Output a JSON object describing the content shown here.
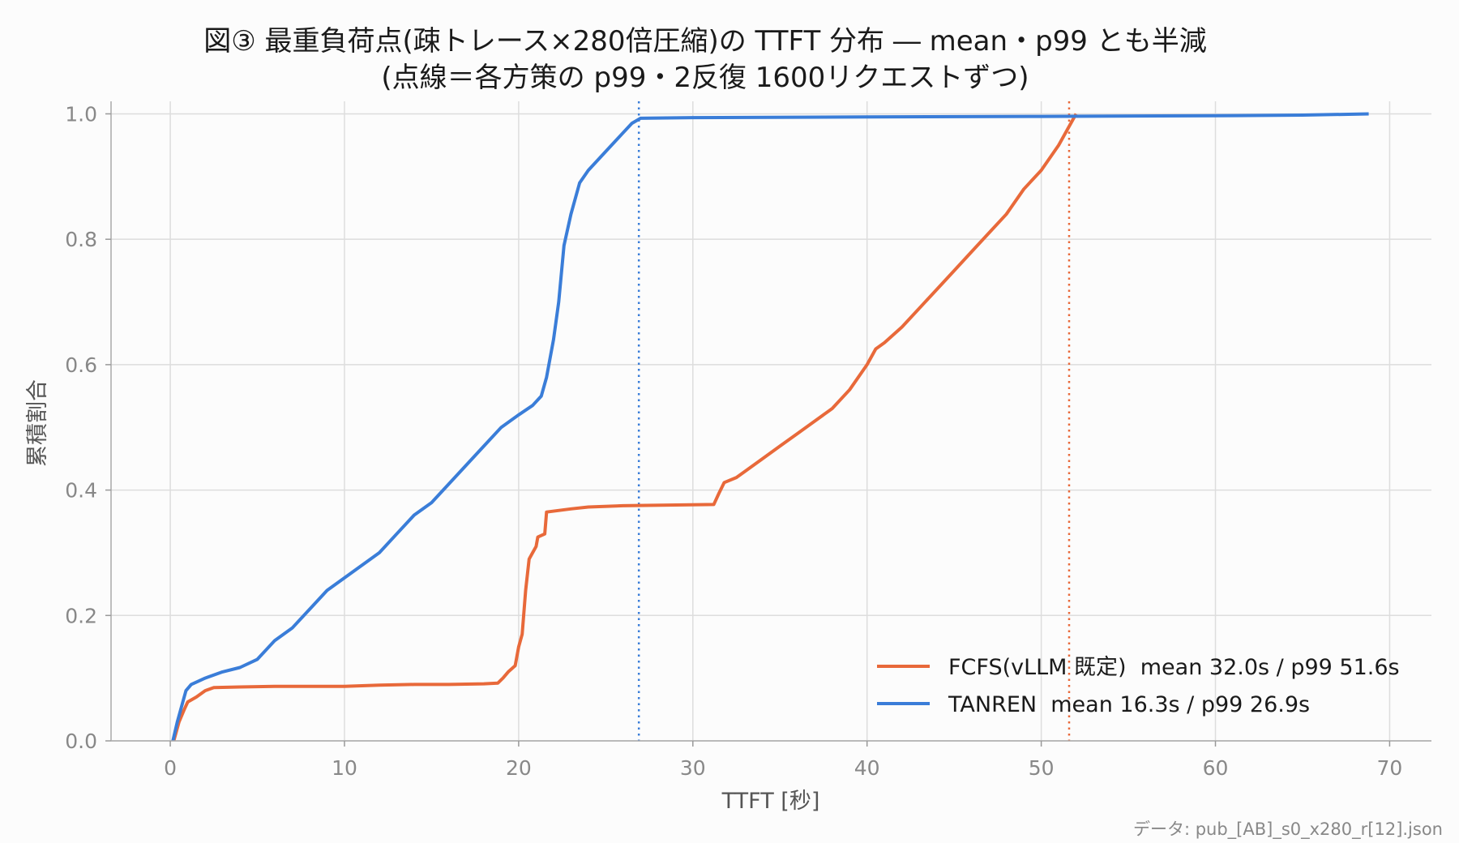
{
  "chart_data": {
    "type": "line",
    "title": "図③ 最重負荷点(疎トレース×280倍圧縮)の TTFT 分布 ― mean・p99 とも半減",
    "subtitle": "(点線＝各方策の p99・2反復 1600リクエストずつ)",
    "xlabel": "TTFT [秒]",
    "ylabel": "累積割合",
    "xlim": [
      -3.4,
      72.4
    ],
    "ylim": [
      0,
      1.02
    ],
    "xticks": [
      0,
      10,
      20,
      30,
      40,
      50,
      60,
      70
    ],
    "yticks": [
      0.0,
      0.2,
      0.4,
      0.6,
      0.8,
      1.0
    ],
    "ytick_labels": [
      "0.0",
      "0.2",
      "0.4",
      "0.6",
      "0.8",
      "1.0"
    ],
    "grid": true,
    "legend_position": "lower-right",
    "series": [
      {
        "name": "FCFS(vLLM 既定)  mean 32.0s / p99 51.6s",
        "color": "#e8693a",
        "p99": 51.6,
        "points": [
          [
            0.2,
            0.0
          ],
          [
            0.5,
            0.03
          ],
          [
            0.8,
            0.05
          ],
          [
            1.0,
            0.062
          ],
          [
            1.5,
            0.07
          ],
          [
            2.0,
            0.08
          ],
          [
            2.5,
            0.085
          ],
          [
            4,
            0.086
          ],
          [
            6,
            0.087
          ],
          [
            10,
            0.087
          ],
          [
            12,
            0.089
          ],
          [
            14,
            0.09
          ],
          [
            16,
            0.09
          ],
          [
            18,
            0.091
          ],
          [
            18.8,
            0.092
          ],
          [
            19.1,
            0.1
          ],
          [
            19.4,
            0.11
          ],
          [
            19.8,
            0.12
          ],
          [
            20.0,
            0.15
          ],
          [
            20.2,
            0.17
          ],
          [
            20.4,
            0.24
          ],
          [
            20.6,
            0.29
          ],
          [
            20.8,
            0.3
          ],
          [
            21.0,
            0.31
          ],
          [
            21.1,
            0.325
          ],
          [
            21.5,
            0.33
          ],
          [
            21.6,
            0.365
          ],
          [
            23,
            0.37
          ],
          [
            24,
            0.373
          ],
          [
            26,
            0.375
          ],
          [
            31.2,
            0.377
          ],
          [
            31.5,
            0.395
          ],
          [
            31.8,
            0.412
          ],
          [
            32.5,
            0.42
          ],
          [
            33,
            0.43
          ],
          [
            34,
            0.45
          ],
          [
            35,
            0.47
          ],
          [
            36,
            0.49
          ],
          [
            37,
            0.51
          ],
          [
            38,
            0.53
          ],
          [
            39,
            0.56
          ],
          [
            40,
            0.6
          ],
          [
            40.5,
            0.625
          ],
          [
            41,
            0.635
          ],
          [
            42,
            0.66
          ],
          [
            43,
            0.69
          ],
          [
            44,
            0.72
          ],
          [
            45,
            0.75
          ],
          [
            46,
            0.78
          ],
          [
            47,
            0.81
          ],
          [
            48,
            0.84
          ],
          [
            49,
            0.88
          ],
          [
            50,
            0.91
          ],
          [
            51,
            0.95
          ],
          [
            52,
            1.0
          ]
        ]
      },
      {
        "name": "TANREN  mean 16.3s / p99 26.9s",
        "color": "#3a7dd8",
        "p99": 26.9,
        "points": [
          [
            0.15,
            0.0
          ],
          [
            0.4,
            0.03
          ],
          [
            0.7,
            0.06
          ],
          [
            0.9,
            0.08
          ],
          [
            1.2,
            0.09
          ],
          [
            2,
            0.1
          ],
          [
            3,
            0.11
          ],
          [
            4,
            0.117
          ],
          [
            5,
            0.13
          ],
          [
            6,
            0.16
          ],
          [
            7,
            0.18
          ],
          [
            8,
            0.21
          ],
          [
            9,
            0.24
          ],
          [
            10,
            0.26
          ],
          [
            11,
            0.28
          ],
          [
            12,
            0.3
          ],
          [
            13,
            0.33
          ],
          [
            14,
            0.36
          ],
          [
            15,
            0.38
          ],
          [
            16,
            0.41
          ],
          [
            17,
            0.44
          ],
          [
            18,
            0.47
          ],
          [
            19,
            0.5
          ],
          [
            20,
            0.52
          ],
          [
            20.8,
            0.535
          ],
          [
            21.3,
            0.55
          ],
          [
            21.6,
            0.58
          ],
          [
            22,
            0.64
          ],
          [
            22.3,
            0.7
          ],
          [
            22.6,
            0.79
          ],
          [
            23,
            0.84
          ],
          [
            23.5,
            0.89
          ],
          [
            24,
            0.91
          ],
          [
            25,
            0.94
          ],
          [
            26,
            0.97
          ],
          [
            26.5,
            0.985
          ],
          [
            27,
            0.993
          ],
          [
            30,
            0.994
          ],
          [
            40,
            0.995
          ],
          [
            50,
            0.996
          ],
          [
            60,
            0.997
          ],
          [
            65,
            0.998
          ],
          [
            68.8,
            1.0
          ]
        ]
      }
    ]
  },
  "source_note": "データ: pub_[AB]_s0_x280_r[12].json"
}
